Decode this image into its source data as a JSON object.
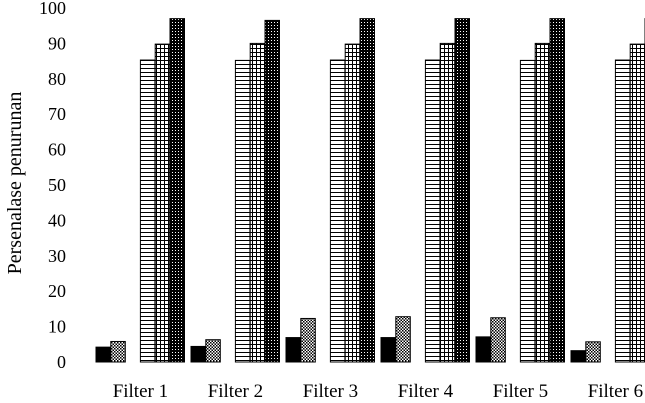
{
  "chart_data": {
    "type": "bar",
    "title": "",
    "xlabel": "",
    "ylabel": "Persenalase penurunan",
    "ylim": [
      0,
      100
    ],
    "yticks": [
      0,
      10,
      20,
      30,
      40,
      50,
      60,
      70,
      80,
      90,
      100
    ],
    "grid": false,
    "legend": "none",
    "categories": [
      "Filter 1",
      "Filter 2",
      "Filter 3",
      "Filter 4",
      "Filter 5",
      "Filter 6"
    ],
    "series": [
      {
        "values": [
          4.2,
          4.4,
          6.9,
          6.9,
          7.1,
          3.2
        ],
        "pattern": "solid-black"
      },
      {
        "values": [
          5.8,
          6.3,
          12.3,
          12.8,
          12.5,
          5.7
        ],
        "pattern": "dotted"
      },
      {
        "values": [
          0,
          0,
          0,
          0,
          0,
          0
        ],
        "pattern": "blank"
      },
      {
        "values": [
          85.3,
          85.2,
          85.3,
          85.3,
          85.2,
          85.3
        ],
        "pattern": "horizontal-lines"
      },
      {
        "values": [
          89.8,
          90.0,
          89.8,
          90.0,
          90.0,
          89.8
        ],
        "pattern": "grid"
      },
      {
        "values": [
          97.0,
          96.5,
          97.0,
          97.0,
          97.0,
          97.0
        ],
        "pattern": "dense-dark"
      }
    ],
    "colors": {
      "ink": "#000000",
      "background": "#ffffff"
    }
  }
}
